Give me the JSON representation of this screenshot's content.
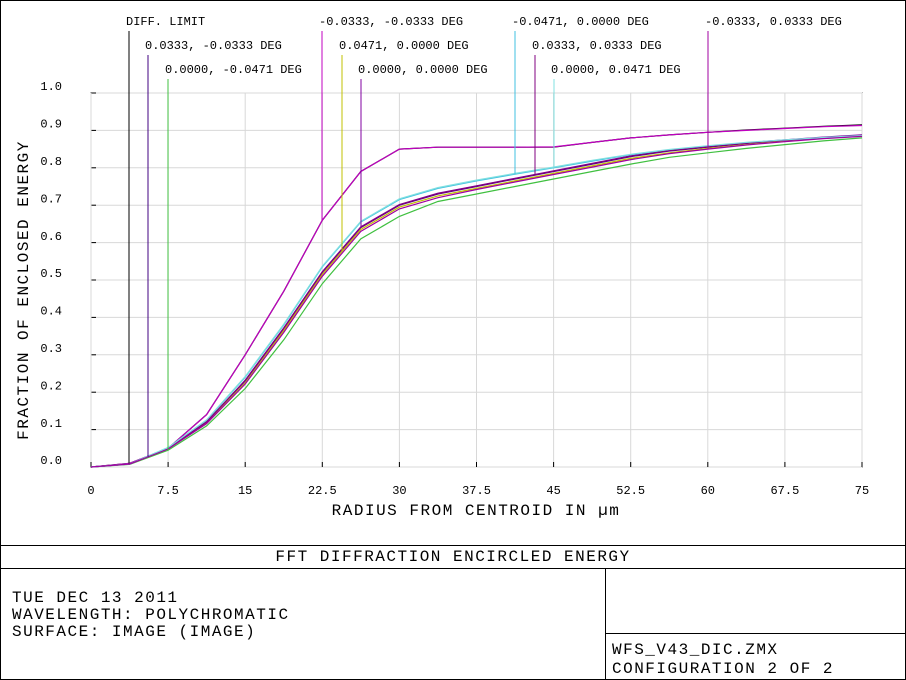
{
  "chart_data": {
    "type": "line",
    "x_label": "RADIUS FROM CENTROID IN µm",
    "y_label": "FRACTION OF ENCLOSED ENERGY",
    "x": [
      0,
      3.75,
      7.5,
      11.25,
      15,
      18.75,
      22.5,
      26.25,
      30,
      33.75,
      37.5,
      41.25,
      45,
      48.75,
      52.5,
      56.25,
      60,
      63.75,
      67.5,
      71.25,
      75
    ],
    "series": [
      {
        "name": "DIFF. LIMIT",
        "color": "#000000",
        "values": [
          0,
          0.01,
          0.05,
          0.14,
          0.3,
          0.47,
          0.66,
          0.79,
          0.85,
          0.855,
          0.855,
          0.855,
          0.855,
          0.868,
          0.88,
          0.888,
          0.895,
          0.901,
          0.906,
          0.911,
          0.915
        ]
      },
      {
        "name": "0.0333, -0.0333 DEG",
        "color": "#400080",
        "values": [
          0,
          0.008,
          0.05,
          0.12,
          0.23,
          0.37,
          0.52,
          0.64,
          0.7,
          0.73,
          0.75,
          0.77,
          0.79,
          0.81,
          0.83,
          0.845,
          0.855,
          0.865,
          0.873,
          0.88,
          0.886
        ]
      },
      {
        "name": "0.0000, -0.0471 DEG",
        "color": "#40c040",
        "values": [
          0,
          0.007,
          0.045,
          0.11,
          0.21,
          0.34,
          0.49,
          0.61,
          0.67,
          0.71,
          0.73,
          0.75,
          0.77,
          0.79,
          0.81,
          0.828,
          0.84,
          0.852,
          0.862,
          0.872,
          0.88
        ]
      },
      {
        "name": "-0.0333, -0.0333 DEG",
        "color": "#c000c0",
        "values": [
          0,
          0.01,
          0.05,
          0.14,
          0.3,
          0.47,
          0.66,
          0.79,
          0.85,
          0.855,
          0.855,
          0.855,
          0.856,
          0.868,
          0.88,
          0.888,
          0.895,
          0.9,
          0.905,
          0.91,
          0.913
        ]
      },
      {
        "name": "0.0471, 0.0000 DEG",
        "color": "#c0c000",
        "values": [
          0,
          0.008,
          0.049,
          0.118,
          0.225,
          0.365,
          0.515,
          0.635,
          0.695,
          0.725,
          0.745,
          0.765,
          0.785,
          0.805,
          0.825,
          0.84,
          0.852,
          0.862,
          0.871,
          0.879,
          0.885
        ]
      },
      {
        "name": "0.0000, 0.0000 DEG",
        "color": "#8000a0",
        "values": [
          0,
          0.008,
          0.05,
          0.12,
          0.232,
          0.372,
          0.522,
          0.642,
          0.702,
          0.732,
          0.752,
          0.772,
          0.792,
          0.812,
          0.832,
          0.847,
          0.857,
          0.867,
          0.875,
          0.882,
          0.888
        ]
      },
      {
        "name": "-0.0471, 0.0000 DEG",
        "color": "#40c0e0",
        "values": [
          0,
          0.008,
          0.052,
          0.125,
          0.24,
          0.38,
          0.535,
          0.655,
          0.715,
          0.745,
          0.765,
          0.783,
          0.8,
          0.818,
          0.835,
          0.848,
          0.858,
          0.867,
          0.874,
          0.88,
          0.885
        ]
      },
      {
        "name": "0.0333, 0.0333 DEG",
        "color": "#800080",
        "values": [
          0,
          0.008,
          0.05,
          0.121,
          0.231,
          0.371,
          0.521,
          0.641,
          0.701,
          0.731,
          0.751,
          0.771,
          0.791,
          0.811,
          0.831,
          0.846,
          0.856,
          0.866,
          0.874,
          0.881,
          0.887
        ]
      },
      {
        "name": "0.0000, 0.0471 DEG",
        "color": "#80e0e0",
        "values": [
          0,
          0.008,
          0.052,
          0.126,
          0.242,
          0.382,
          0.537,
          0.657,
          0.717,
          0.747,
          0.767,
          0.785,
          0.802,
          0.82,
          0.836,
          0.849,
          0.859,
          0.868,
          0.875,
          0.881,
          0.886
        ]
      },
      {
        "name": "-0.0333, 0.0333 DEG",
        "color": "#a000a0",
        "values": [
          0,
          0.008,
          0.048,
          0.116,
          0.222,
          0.36,
          0.51,
          0.63,
          0.69,
          0.72,
          0.742,
          0.762,
          0.782,
          0.802,
          0.822,
          0.838,
          0.85,
          0.861,
          0.87,
          0.878,
          0.884
        ]
      }
    ],
    "xlim": [
      0,
      75
    ],
    "xticks": [
      0,
      7.5,
      15,
      22.5,
      30,
      37.5,
      45,
      52.5,
      60,
      67.5,
      75
    ],
    "ylim": [
      0,
      1
    ],
    "yticks": [
      {
        "value": 0,
        "label": "0.0"
      },
      0.1,
      0.2,
      0.3,
      0.4,
      0.5,
      0.6,
      0.7,
      0.8,
      0.9,
      {
        "value": 1,
        "label": "1.0"
      }
    ],
    "grid": true
  },
  "footer": {
    "title": "FFT DIFFRACTION ENCIRCLED ENERGY",
    "date": "TUE DEC 13 2011",
    "wavelength": "WAVELENGTH: POLYCHROMATIC",
    "surface": "SURFACE: IMAGE (IMAGE)",
    "file": "WFS_V43_DIC.ZMX",
    "configuration": "CONFIGURATION 2 OF 2"
  }
}
